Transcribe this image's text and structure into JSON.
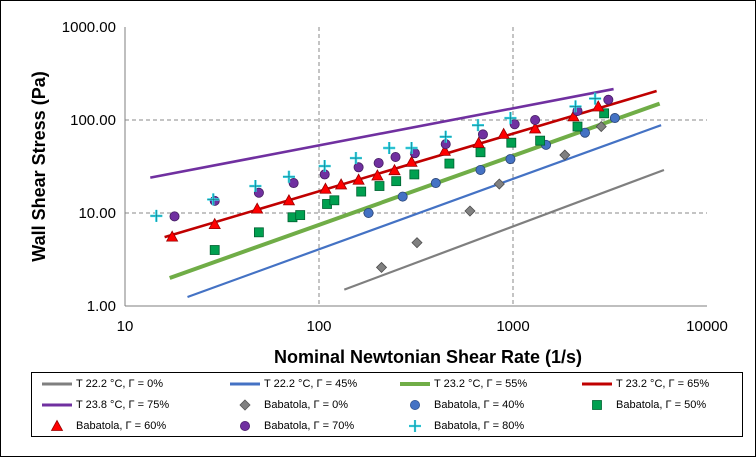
{
  "chart_data": {
    "type": "scatter",
    "x_scale": "log",
    "y_scale": "log",
    "xlabel": "Nominal Newtonian Shear Rate (1/s)",
    "ylabel": "Wall Shear Stress (Pa)",
    "xlim": [
      10,
      10000
    ],
    "ylim": [
      1,
      1000
    ],
    "x_ticks": [
      "10",
      "100",
      "1000",
      "10000"
    ],
    "y_ticks": [
      "1.00",
      "10.00",
      "100.00",
      "1000.00"
    ],
    "grid": "dashed major gridlines",
    "legend_position": "bottom",
    "lines": [
      {
        "name": "T  22.2  °C, Γ = 0%",
        "color": "#7f7f7f",
        "width": 2.2,
        "x": [
          135,
          6000
        ],
        "y": [
          1.5,
          29
        ]
      },
      {
        "name": "T  22.2  °C, Γ = 45%",
        "color": "#4472c4",
        "width": 2.2,
        "x": [
          21,
          5800
        ],
        "y": [
          1.25,
          88
        ]
      },
      {
        "name": "T  23.2  °C, Γ = 55%",
        "color": "#70ad47",
        "width": 4,
        "x": [
          17,
          5700
        ],
        "y": [
          2,
          150
        ]
      },
      {
        "name": "T  23.2  °C, Γ = 65%",
        "color": "#c00000",
        "width": 2.6,
        "x": [
          16,
          5500
        ],
        "y": [
          5.5,
          205
        ]
      },
      {
        "name": "T  23.8  °C, Γ = 75%",
        "color": "#7030a0",
        "width": 2.6,
        "x": [
          13.5,
          3300
        ],
        "y": [
          24,
          215
        ]
      }
    ],
    "points": [
      {
        "name": "Babatola, Γ = 0%",
        "marker": "diamond",
        "color": "#808080",
        "x": [
          210,
          320,
          600,
          850,
          1850,
          2850
        ],
        "y": [
          2.6,
          4.8,
          10.5,
          20.5,
          42,
          85
        ]
      },
      {
        "name": "Babatola, Γ = 40%",
        "marker": "circle",
        "color": "#4472c4",
        "x": [
          180,
          270,
          400,
          680,
          970,
          1480,
          2350,
          3350
        ],
        "y": [
          10,
          15,
          21,
          29,
          38,
          54,
          73,
          105
        ]
      },
      {
        "name": "Babatola, Γ = 50%",
        "marker": "square",
        "color": "#00a050",
        "x": [
          29,
          49,
          73,
          80,
          110,
          120,
          165,
          205,
          250,
          310,
          470,
          680,
          980,
          1380,
          2150,
          2950
        ],
        "y": [
          4,
          6.2,
          9,
          9.5,
          12.5,
          13.7,
          17,
          19.5,
          22,
          26,
          34,
          45,
          57,
          60,
          85,
          118
        ]
      },
      {
        "name": "Babatola, Γ = 60%",
        "marker": "triangle",
        "color": "#ff0000",
        "x": [
          17.5,
          29,
          48,
          70,
          108,
          130,
          160,
          200,
          245,
          300,
          445,
          665,
          895,
          1300,
          2050,
          2750
        ],
        "y": [
          5.5,
          7.5,
          11,
          13.5,
          18,
          20,
          22.5,
          25,
          28.5,
          35,
          46,
          56,
          70,
          80,
          108,
          138
        ]
      },
      {
        "name": "Babatola, Γ = 70%",
        "marker": "circle",
        "color": "#7030a0",
        "x": [
          18,
          29,
          49,
          74,
          107,
          160,
          203,
          248,
          312,
          450,
          700,
          1020,
          1300,
          2150,
          3100
        ],
        "y": [
          9.2,
          13.5,
          16.5,
          21,
          26,
          31,
          34.5,
          40,
          44,
          55,
          70,
          90,
          100,
          125,
          165
        ]
      },
      {
        "name": "Babatola, Γ = 80%",
        "marker": "plus",
        "color": "#33ddee",
        "x": [
          14.5,
          28.5,
          47,
          70,
          107,
          155,
          230,
          300,
          450,
          660,
          970,
          2100,
          2650
        ],
        "y": [
          9.3,
          14,
          19.5,
          24.5,
          32,
          39,
          50,
          50,
          66,
          88,
          105,
          140,
          170
        ]
      }
    ]
  }
}
